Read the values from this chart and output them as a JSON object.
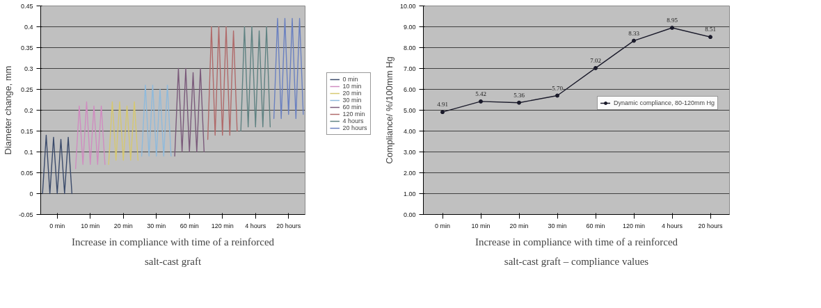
{
  "chart_data": [
    {
      "type": "line",
      "ylabel": "Diameter change, mm",
      "categories": [
        null,
        null,
        null,
        null,
        "0 min",
        null,
        null,
        null,
        null,
        null,
        null,
        null,
        null,
        "10 min",
        null,
        null,
        null,
        null,
        null,
        null,
        null,
        null,
        "20 min",
        null,
        null,
        null,
        null,
        null,
        null,
        null,
        null,
        "30 min",
        null,
        null,
        null,
        null,
        null,
        null,
        null,
        null,
        "60 min",
        null,
        null,
        null,
        null,
        null,
        null,
        null,
        null,
        "120 min",
        null,
        null,
        null,
        null,
        null,
        null,
        null,
        null,
        "4 hours",
        null,
        null,
        null,
        null,
        null,
        null,
        null,
        null,
        "20 hours",
        null,
        null,
        null,
        null
      ],
      "ylim": [
        -0.05,
        0.45
      ],
      "yticks": [
        {
          "value": -0.05,
          "label": "-0.05"
        },
        {
          "value": 0,
          "label": "0"
        },
        {
          "value": 0.05,
          "label": "0.05"
        },
        {
          "value": 0.1,
          "label": "0.1"
        },
        {
          "value": 0.15,
          "label": "0.15"
        },
        {
          "value": 0.2,
          "label": "0.2"
        },
        {
          "value": 0.25,
          "label": "0.25"
        },
        {
          "value": 0.3,
          "label": "0.3"
        },
        {
          "value": 0.35,
          "label": "0.35"
        },
        {
          "value": 0.4,
          "label": "0.4"
        },
        {
          "value": 0.45,
          "label": "0.45"
        }
      ],
      "grid": "y",
      "legend": "right",
      "line_style": "solid",
      "series": [
        {
          "name": "0 min",
          "color": "#3a4a6a",
          "values": [
            0.0,
            0.14,
            0.0,
            0.135,
            0.0,
            0.13,
            0.0,
            0.135,
            0.0,
            null,
            null,
            null,
            null,
            null,
            null,
            null,
            null,
            null,
            null,
            null,
            null,
            null,
            null,
            null,
            null,
            null,
            null,
            null,
            null,
            null,
            null,
            null,
            null,
            null,
            null,
            null,
            null,
            null,
            null,
            null,
            null,
            null,
            null,
            null,
            null,
            null,
            null,
            null,
            null,
            null,
            null,
            null,
            null,
            null,
            null,
            null,
            null,
            null,
            null,
            null,
            null,
            null,
            null,
            null,
            null,
            null,
            null,
            null,
            null,
            null,
            null,
            null
          ]
        },
        {
          "name": "10 min",
          "color": "#d08cc0",
          "values": [
            null,
            null,
            null,
            null,
            null,
            null,
            null,
            null,
            null,
            0.06,
            0.21,
            0.07,
            0.22,
            0.07,
            0.21,
            0.07,
            0.21,
            0.07,
            null,
            null,
            null,
            null,
            null,
            null,
            null,
            null,
            null,
            null,
            null,
            null,
            null,
            null,
            null,
            null,
            null,
            null,
            null,
            null,
            null,
            null,
            null,
            null,
            null,
            null,
            null,
            null,
            null,
            null,
            null,
            null,
            null,
            null,
            null,
            null,
            null,
            null,
            null,
            null,
            null,
            null,
            null,
            null,
            null,
            null,
            null,
            null,
            null,
            null,
            null,
            null,
            null,
            null
          ]
        },
        {
          "name": "20 min",
          "color": "#d6c870",
          "values": [
            null,
            null,
            null,
            null,
            null,
            null,
            null,
            null,
            null,
            null,
            null,
            null,
            null,
            null,
            null,
            null,
            null,
            null,
            0.07,
            0.22,
            0.08,
            0.22,
            0.08,
            0.21,
            0.08,
            0.22,
            0.08,
            null,
            null,
            null,
            null,
            null,
            null,
            null,
            null,
            null,
            null,
            null,
            null,
            null,
            null,
            null,
            null,
            null,
            null,
            null,
            null,
            null,
            null,
            null,
            null,
            null,
            null,
            null,
            null,
            null,
            null,
            null,
            null,
            null,
            null,
            null,
            null,
            null,
            null,
            null,
            null,
            null,
            null,
            null,
            null,
            null
          ]
        },
        {
          "name": "30 min",
          "color": "#8fbadc",
          "values": [
            null,
            null,
            null,
            null,
            null,
            null,
            null,
            null,
            null,
            null,
            null,
            null,
            null,
            null,
            null,
            null,
            null,
            null,
            null,
            null,
            null,
            null,
            null,
            null,
            null,
            null,
            null,
            0.09,
            0.26,
            0.09,
            0.26,
            0.09,
            0.25,
            0.09,
            0.26,
            0.09,
            null,
            null,
            null,
            null,
            null,
            null,
            null,
            null,
            null,
            null,
            null,
            null,
            null,
            null,
            null,
            null,
            null,
            null,
            null,
            null,
            null,
            null,
            null,
            null,
            null,
            null,
            null,
            null,
            null,
            null,
            null,
            null,
            null,
            null,
            null,
            null
          ]
        },
        {
          "name": "60 min",
          "color": "#7a5a7a",
          "values": [
            null,
            null,
            null,
            null,
            null,
            null,
            null,
            null,
            null,
            null,
            null,
            null,
            null,
            null,
            null,
            null,
            null,
            null,
            null,
            null,
            null,
            null,
            null,
            null,
            null,
            null,
            null,
            null,
            null,
            null,
            null,
            null,
            null,
            null,
            null,
            null,
            0.09,
            0.3,
            0.1,
            0.3,
            0.1,
            0.29,
            0.1,
            0.3,
            0.1,
            null,
            null,
            null,
            null,
            null,
            null,
            null,
            null,
            null,
            null,
            null,
            null,
            null,
            null,
            null,
            null,
            null,
            null,
            null,
            null,
            null,
            null,
            null,
            null,
            null,
            null,
            null
          ]
        },
        {
          "name": "120 min",
          "color": "#b06a6a",
          "values": [
            null,
            null,
            null,
            null,
            null,
            null,
            null,
            null,
            null,
            null,
            null,
            null,
            null,
            null,
            null,
            null,
            null,
            null,
            null,
            null,
            null,
            null,
            null,
            null,
            null,
            null,
            null,
            null,
            null,
            null,
            null,
            null,
            null,
            null,
            null,
            null,
            null,
            null,
            null,
            null,
            null,
            null,
            null,
            null,
            null,
            0.13,
            0.4,
            0.14,
            0.4,
            0.14,
            0.4,
            0.14,
            0.39,
            0.15,
            null,
            null,
            null,
            null,
            null,
            null,
            null,
            null,
            null,
            null,
            null,
            null,
            null,
            null,
            null,
            null,
            null,
            null
          ]
        },
        {
          "name": "4 hours",
          "color": "#5f8282",
          "values": [
            null,
            null,
            null,
            null,
            null,
            null,
            null,
            null,
            null,
            null,
            null,
            null,
            null,
            null,
            null,
            null,
            null,
            null,
            null,
            null,
            null,
            null,
            null,
            null,
            null,
            null,
            null,
            null,
            null,
            null,
            null,
            null,
            null,
            null,
            null,
            null,
            null,
            null,
            null,
            null,
            null,
            null,
            null,
            null,
            null,
            null,
            null,
            null,
            null,
            null,
            null,
            null,
            null,
            null,
            0.15,
            0.4,
            0.16,
            0.4,
            0.16,
            0.39,
            0.16,
            0.4,
            0.16,
            null,
            null,
            null,
            null,
            null,
            null,
            null,
            null,
            null
          ]
        },
        {
          "name": "20 hours",
          "color": "#6a80c0",
          "values": [
            null,
            null,
            null,
            null,
            null,
            null,
            null,
            null,
            null,
            null,
            null,
            null,
            null,
            null,
            null,
            null,
            null,
            null,
            null,
            null,
            null,
            null,
            null,
            null,
            null,
            null,
            null,
            null,
            null,
            null,
            null,
            null,
            null,
            null,
            null,
            null,
            null,
            null,
            null,
            null,
            null,
            null,
            null,
            null,
            null,
            null,
            null,
            null,
            null,
            null,
            null,
            null,
            null,
            null,
            null,
            null,
            null,
            null,
            null,
            null,
            null,
            null,
            null,
            0.18,
            0.42,
            0.18,
            0.42,
            0.19,
            0.42,
            0.18,
            0.42,
            0.19
          ]
        }
      ],
      "annotations": [
        "Increase in compliance with time of a reinforced salt-cast graft"
      ]
    },
    {
      "type": "line",
      "ylabel": "Compliance/ %/100mm Hg",
      "categories": [
        "0 min",
        "10 min",
        "20 min",
        "30 min",
        "60 min",
        "120 min",
        "4 hours",
        "20 hours"
      ],
      "ylim": [
        0,
        10
      ],
      "yticks": [
        {
          "value": 0,
          "label": "0.00"
        },
        {
          "value": 1,
          "label": "1.00"
        },
        {
          "value": 2,
          "label": "2.00"
        },
        {
          "value": 3,
          "label": "3.00"
        },
        {
          "value": 4,
          "label": "4.00"
        },
        {
          "value": 5,
          "label": "5.00"
        },
        {
          "value": 6,
          "label": "6.00"
        },
        {
          "value": 7,
          "label": "7.00"
        },
        {
          "value": 8,
          "label": "8.00"
        },
        {
          "value": 9,
          "label": "9.00"
        },
        {
          "value": 10,
          "label": "10.00"
        }
      ],
      "grid": "y",
      "legend": "right",
      "marker": "circle",
      "line_style": "solid",
      "series": [
        {
          "name": "Dynamic compliance, 80-120mm Hg",
          "color": "#1a1a2a",
          "values": [
            4.91,
            5.42,
            5.36,
            5.7,
            7.02,
            8.33,
            8.95,
            8.51
          ],
          "value_labels": [
            "4.91",
            "5.42",
            "5.36",
            "5.70",
            "7.02",
            "8.33",
            "8.95",
            "8.51"
          ]
        }
      ],
      "annotations": [
        "Increase in compliance with time of a reinforced salt-cast graft – compliance values"
      ]
    }
  ]
}
